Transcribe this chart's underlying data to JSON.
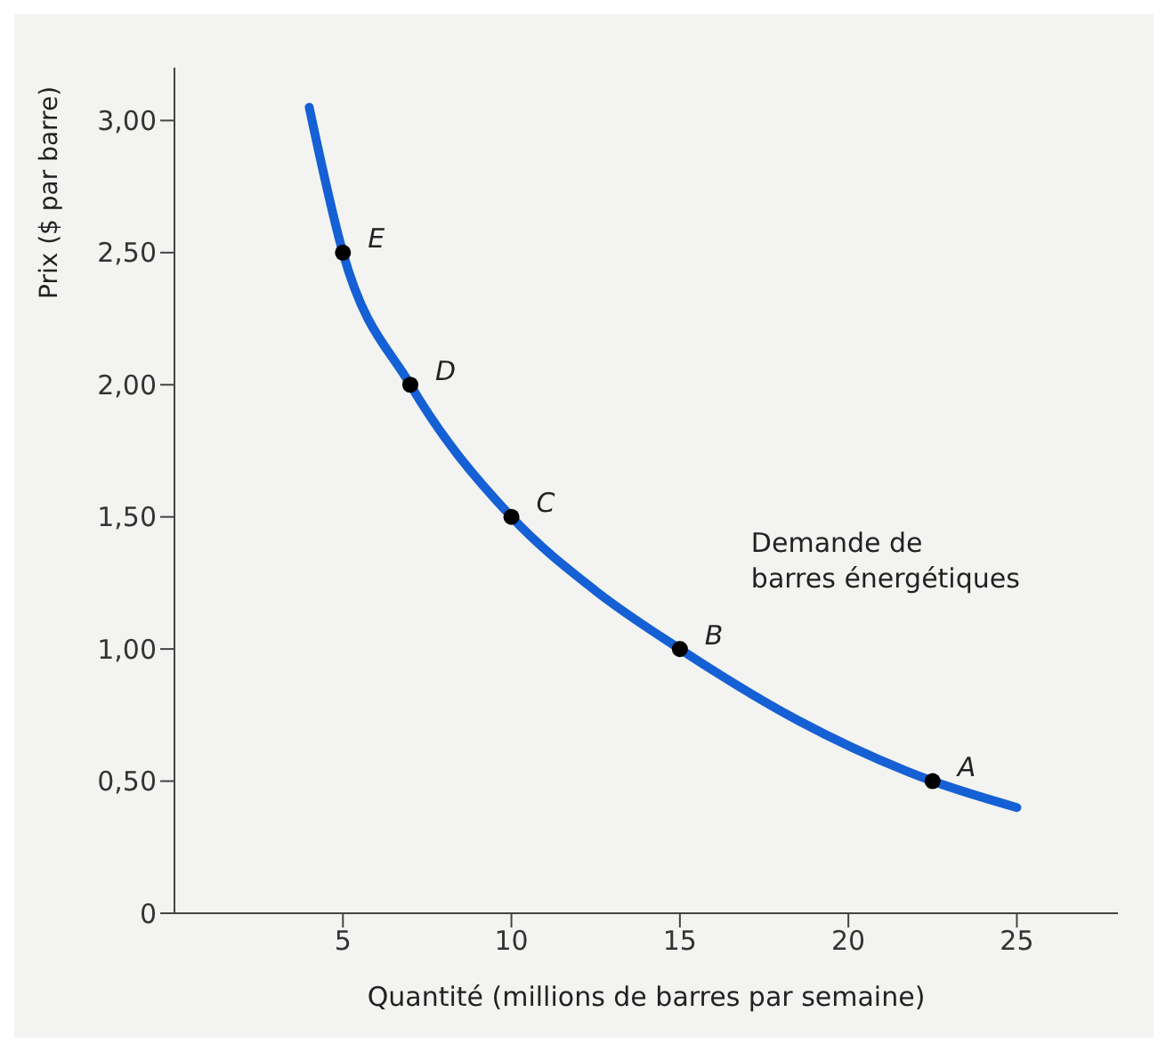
{
  "chart_data": {
    "type": "line",
    "xlabel": "Quantité (millions de barres par semaine)",
    "ylabel": "Prix ($ par barre)",
    "xlim": [
      0,
      28
    ],
    "xticks": [
      5,
      10,
      15,
      20,
      25
    ],
    "ylim": [
      0,
      3.2
    ],
    "yticks": [
      {
        "value": 0,
        "label": "0"
      },
      {
        "value": 0.5,
        "label": "0,50"
      },
      {
        "value": 1,
        "label": "1,00"
      },
      {
        "value": 1.5,
        "label": "1,50"
      },
      {
        "value": 2,
        "label": "2,00"
      },
      {
        "value": 2.5,
        "label": "2,50"
      },
      {
        "value": 3,
        "label": "3,00"
      }
    ],
    "grid": false,
    "legend": false,
    "series": [
      {
        "name": "Demande de barres énergétiques",
        "type": "line",
        "color": "#1560d4",
        "marker": "none",
        "x": [
          4,
          5,
          7,
          10,
          12.5,
          15,
          18.5,
          22.5,
          25
        ],
        "values": [
          3.05,
          2.5,
          2,
          1.5,
          1.22,
          1,
          0.73,
          0.5,
          0.4
        ]
      },
      {
        "type": "scatter",
        "color": "#000000",
        "marker": "circle",
        "x": [
          5,
          7,
          10,
          15,
          22.5
        ],
        "values": [
          2.5,
          2,
          1.5,
          1,
          0.5
        ]
      }
    ],
    "annotations": [
      {
        "text": "E",
        "x": 5,
        "y": 2.5
      },
      {
        "text": "D",
        "x": 7,
        "y": 2
      },
      {
        "text": "C",
        "x": 10,
        "y": 1.5
      },
      {
        "text": "B",
        "x": 15,
        "y": 1
      },
      {
        "text": "A",
        "x": 22.5,
        "y": 0.5
      }
    ]
  }
}
